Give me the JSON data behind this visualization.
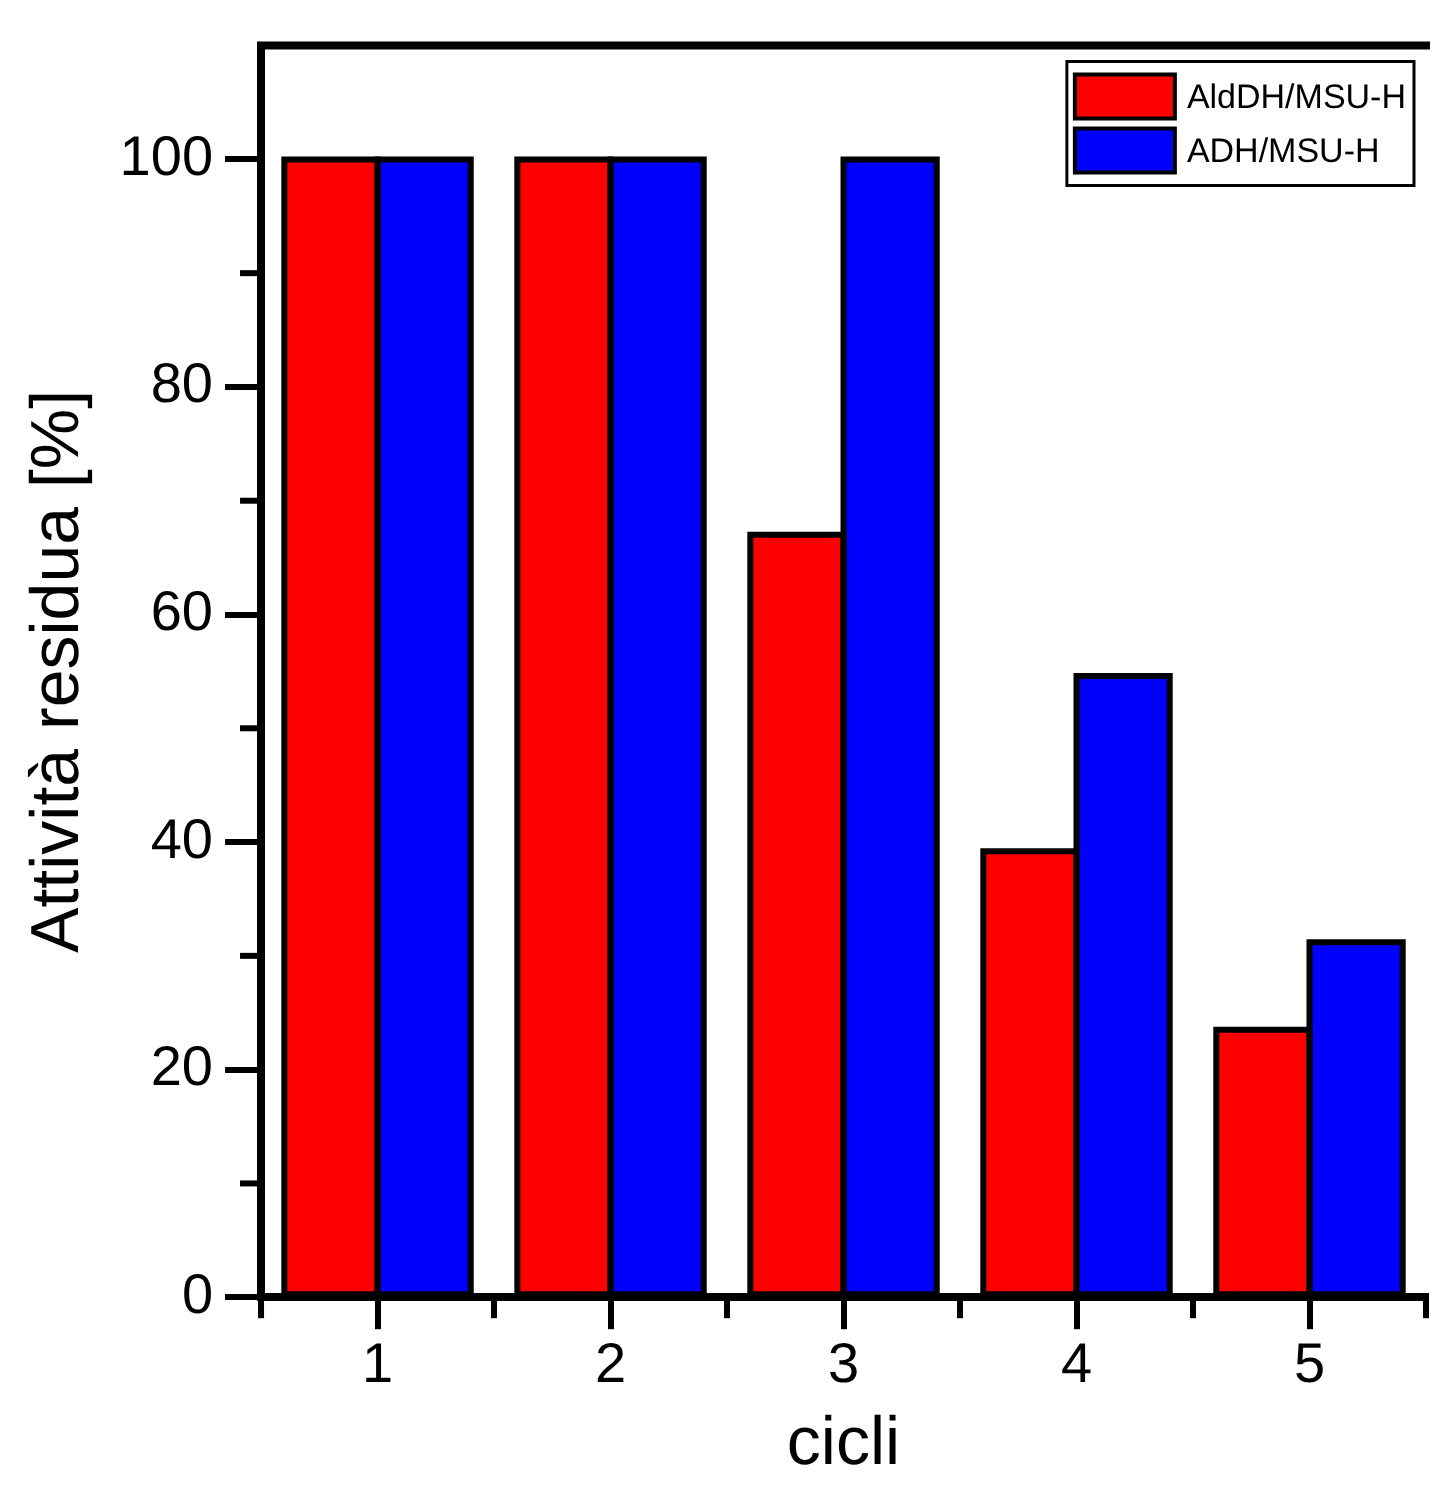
{
  "chart_data": {
    "type": "bar",
    "xlabel": "cicli",
    "ylabel": "Attività residua [%]",
    "categories": [
      "1",
      "2",
      "3",
      "4",
      "5"
    ],
    "series": [
      {
        "name": "AldDH/MSU-H",
        "color": "#ff0000",
        "values": [
          100,
          100,
          67,
          39.2,
          23.5
        ]
      },
      {
        "name": "ADH/MSU-H",
        "color": "#0000ff",
        "values": [
          100,
          100,
          100,
          54.6,
          31.2
        ]
      }
    ],
    "ylim": [
      0,
      110
    ],
    "yticks": [
      0,
      20,
      40,
      60,
      80,
      100
    ],
    "grid": false,
    "legend": "top right"
  }
}
